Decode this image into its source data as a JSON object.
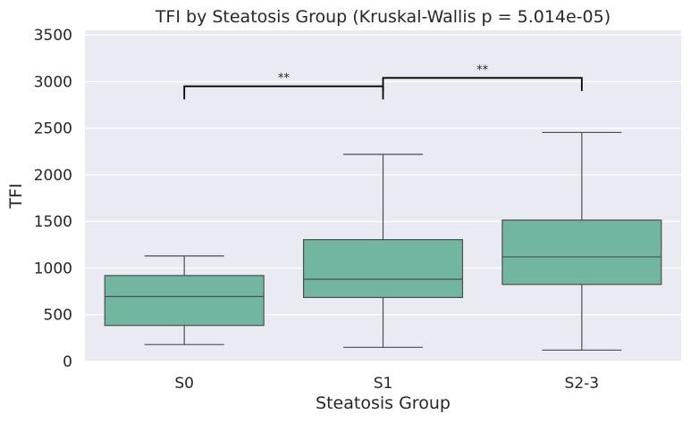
{
  "chart_data": {
    "type": "box",
    "title": "TFI by Steatosis Group (Kruskal-Wallis p = 5.014e-05)",
    "xlabel": "Steatosis Group",
    "ylabel": "TFI",
    "ylim": [
      0,
      3550
    ],
    "yticks": [
      0,
      500,
      1000,
      1500,
      2000,
      2500,
      3000,
      3500
    ],
    "grid": true,
    "box_color": "#72b6a1",
    "line_color": "#4d4d4d",
    "background": "#eaeaf2",
    "categories": [
      "S0",
      "S1",
      "S2-3"
    ],
    "boxes": [
      {
        "category": "S0",
        "whisker_low": 180,
        "q1": 385,
        "median": 695,
        "q3": 920,
        "whisker_high": 1130
      },
      {
        "category": "S1",
        "whisker_low": 150,
        "q1": 685,
        "median": 880,
        "q3": 1305,
        "whisker_high": 2220
      },
      {
        "category": "S2-3",
        "whisker_low": 120,
        "q1": 825,
        "median": 1120,
        "q3": 1515,
        "whisker_high": 2455
      }
    ],
    "annotations": [
      {
        "from": "S0",
        "to": "S1",
        "label": "**",
        "y": 2950,
        "drop": 140
      },
      {
        "from": "S1",
        "to": "S2-3",
        "label": "**",
        "y": 3040,
        "drop": 140
      }
    ]
  }
}
